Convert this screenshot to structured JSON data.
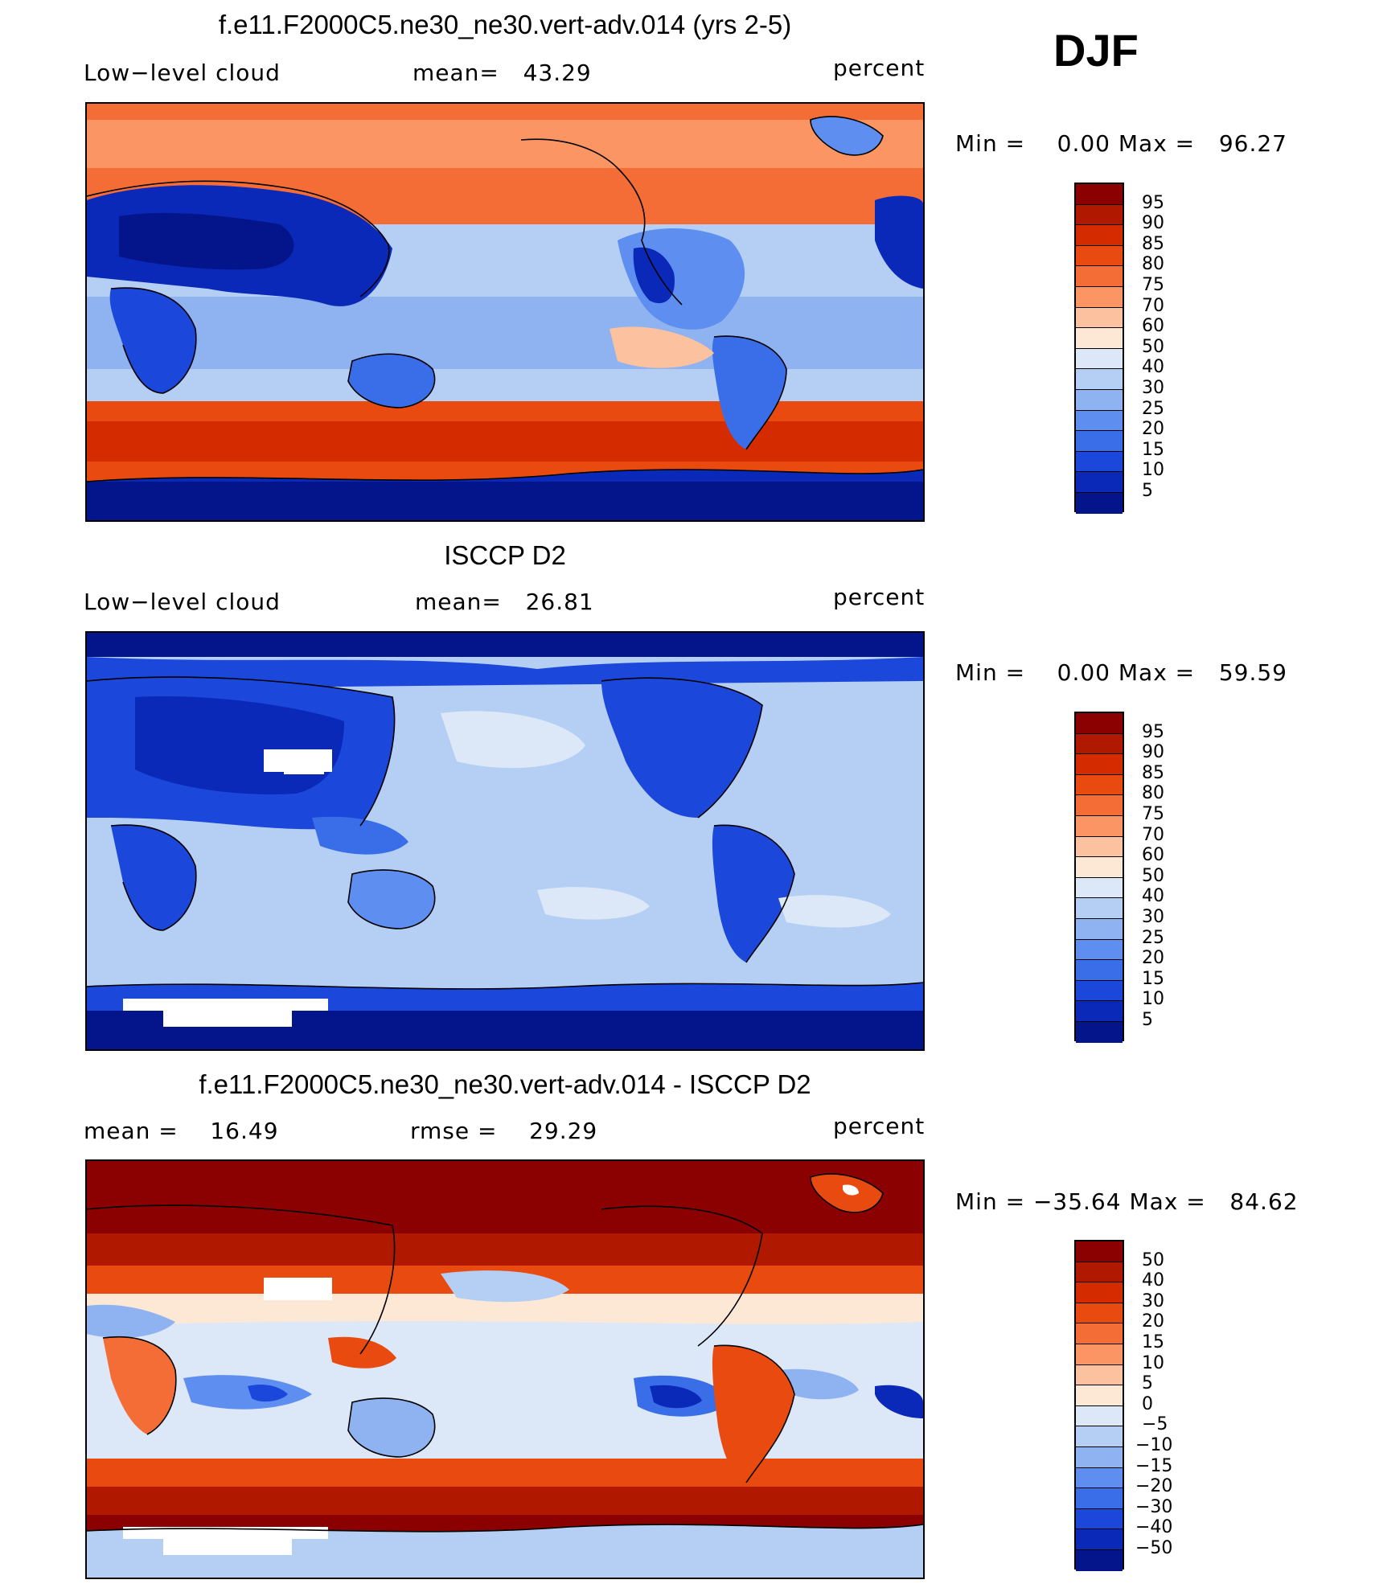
{
  "season": "DJF",
  "panels": [
    {
      "title": "f.e11.F2000C5.ne30_ne30.vert-adv.014 (yrs 2-5)",
      "left_label": "Low−level cloud",
      "mid_label": "mean=   43.29",
      "units": "percent",
      "minmax": "Min =    0.00 Max =   96.27"
    },
    {
      "title": "ISCCP D2",
      "left_label": "Low−level cloud",
      "mid_label": "mean=   26.81",
      "units": "percent",
      "minmax": "Min =    0.00 Max =   59.59"
    },
    {
      "title": "f.e11.F2000C5.ne30_ne30.vert-adv.014 - ISCCP D2",
      "left_label": "mean =    16.49",
      "mid_label": "rmse =    29.29",
      "units": "percent",
      "minmax": "Min = −35.64 Max =   84.62"
    }
  ],
  "colorbars": {
    "abs": {
      "labels": [
        "95",
        "90",
        "85",
        "80",
        "75",
        "70",
        "60",
        "50",
        "40",
        "30",
        "25",
        "20",
        "15",
        "10",
        "5"
      ],
      "colors": [
        "#8b0000",
        "#b01800",
        "#d42c00",
        "#e84a10",
        "#f46c36",
        "#fb9664",
        "#fcc2a0",
        "#fde8d6",
        "#dce8f8",
        "#b4cef4",
        "#8fb2f0",
        "#5e8ff0",
        "#3a6ee8",
        "#1b47da",
        "#0a29b8",
        "#04148a"
      ]
    },
    "diff": {
      "labels": [
        "50",
        "40",
        "30",
        "20",
        "15",
        "10",
        "5",
        "0",
        "−5",
        "−10",
        "−15",
        "−20",
        "−30",
        "−40",
        "−50"
      ],
      "colors": [
        "#8b0000",
        "#b01800",
        "#d42c00",
        "#e84a10",
        "#f46c36",
        "#fb9664",
        "#fcc2a0",
        "#fde8d6",
        "#dce8f8",
        "#b4cef4",
        "#8fb2f0",
        "#5e8ff0",
        "#3a6ee8",
        "#1b47da",
        "#0a29b8",
        "#04148a"
      ]
    }
  },
  "chart_data": [
    {
      "type": "heatmap",
      "title": "f.e11.F2000C5.ne30_ne30.vert-adv.014 (yrs 2-5)",
      "variable": "Low−level cloud",
      "units": "percent",
      "mean": 43.29,
      "min": 0.0,
      "max": 96.27,
      "levels": [
        5,
        10,
        15,
        20,
        25,
        30,
        40,
        50,
        60,
        70,
        75,
        80,
        85,
        90,
        95
      ],
      "projection": "cylindrical equidistant, Pacific-centred",
      "season": "DJF"
    },
    {
      "type": "heatmap",
      "title": "ISCCP D2",
      "variable": "Low−level cloud",
      "units": "percent",
      "mean": 26.81,
      "min": 0.0,
      "max": 59.59,
      "levels": [
        5,
        10,
        15,
        20,
        25,
        30,
        40,
        50,
        60,
        70,
        75,
        80,
        85,
        90,
        95
      ],
      "season": "DJF"
    },
    {
      "type": "heatmap",
      "title": "f.e11.F2000C5.ne30_ne30.vert-adv.014 - ISCCP D2",
      "units": "percent",
      "mean": 16.49,
      "rmse": 29.29,
      "min": -35.64,
      "max": 84.62,
      "levels": [
        -50,
        -40,
        -30,
        -20,
        -15,
        -10,
        -5,
        0,
        5,
        10,
        15,
        20,
        30,
        40,
        50
      ],
      "season": "DJF"
    }
  ]
}
